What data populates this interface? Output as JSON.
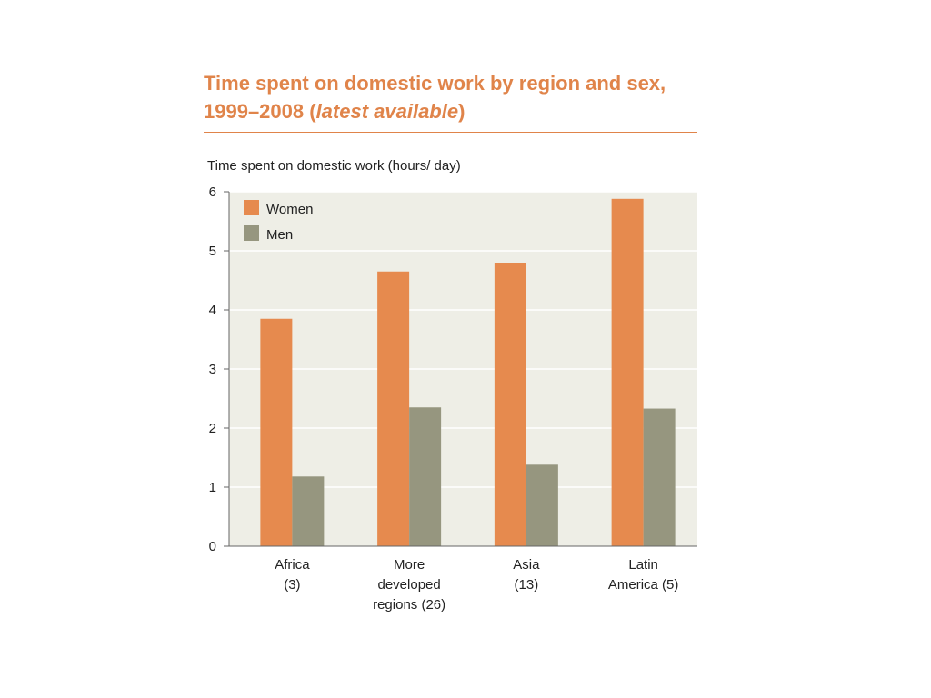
{
  "title": {
    "line1": "Time spent on domestic work by region and sex,",
    "line2_year": "1999–2008 (",
    "line2_italic": "latest available",
    "line2_close": ")"
  },
  "chart_data": {
    "type": "bar",
    "ylabel": "Time spent on domestic work (hours/ day)",
    "xlabel": "",
    "ylim": [
      0,
      6
    ],
    "yticks": [
      "0",
      "1",
      "2",
      "3",
      "4",
      "5",
      "6"
    ],
    "categories": [
      [
        "Africa",
        "(3)"
      ],
      [
        "More",
        "developed",
        "regions (26)"
      ],
      [
        "Asia",
        "(13)"
      ],
      [
        "Latin",
        "America (5)"
      ]
    ],
    "series": [
      {
        "name": "Women",
        "values": [
          3.85,
          4.65,
          4.8,
          5.88
        ],
        "color": "#e68a4e"
      },
      {
        "name": "Men",
        "values": [
          1.18,
          2.35,
          1.38,
          2.33
        ],
        "color": "#96967f"
      }
    ],
    "grid": true,
    "legend_position": "top-left",
    "plot_background": "#eeeee6"
  }
}
